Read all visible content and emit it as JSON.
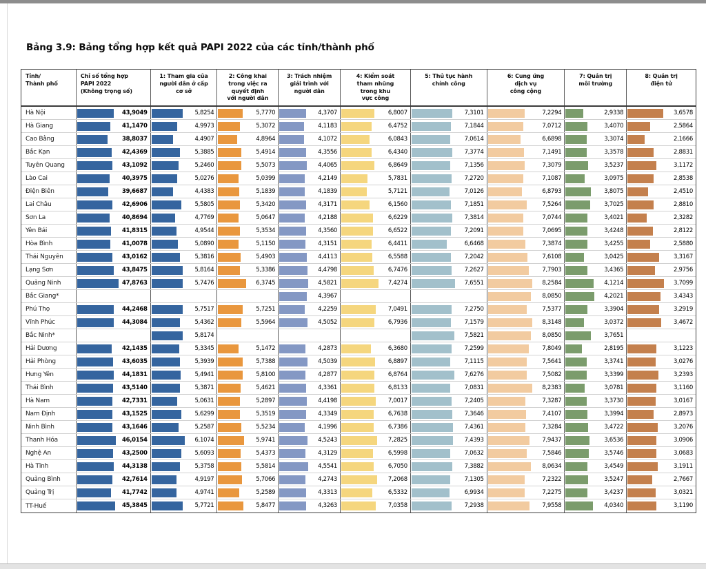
{
  "page": {
    "title": "Bảng 3.9: Bảng tổng hợp kết quả PAPI 2022 của các tỉnh/thành phố"
  },
  "table": {
    "columns": [
      {
        "key": "province",
        "label": "Tỉnh/\nThành phố",
        "width": 80,
        "align": "left"
      },
      {
        "key": "papi",
        "label": "Chỉ số tổng hợp\nPAPI 2022\n(Không trọng số)",
        "width": 108,
        "align": "left",
        "color": "#35659f",
        "bold": true
      },
      {
        "key": "c1",
        "label": "1: Tham gia của\nngười dân ở cấp\ncơ sở",
        "width": 97,
        "color": "#35659f"
      },
      {
        "key": "c2",
        "label": "2: Công khai\ntrong việc ra\nquyết định\nvới người dân",
        "width": 89,
        "color": "#e9973e"
      },
      {
        "key": "c3",
        "label": "3: Trách nhiệm\ngiải trình với\nngười dân",
        "width": 90,
        "color": "#8498c4"
      },
      {
        "key": "c4",
        "label": "4: Kiểm soát\ntham nhũng\ntrong khu\nvực công",
        "width": 102,
        "color": "#f5d67e"
      },
      {
        "key": "c5",
        "label": "5: Thủ tục hành\nchính công",
        "width": 111,
        "color": "#a2c0cb"
      },
      {
        "key": "c6",
        "label": "6: Cung ứng\ndịch vụ\ncông cộng",
        "width": 113,
        "color": "#f2cba0"
      },
      {
        "key": "c7",
        "label": "7: Quản trị\nmôi trường",
        "width": 90,
        "color": "#7b9c6c"
      },
      {
        "key": "c8",
        "label": "8: Quản trị\nđiện tử",
        "width": 100,
        "color": "#c4804d"
      }
    ],
    "rows": [
      {
        "province": "Hà Nội",
        "papi": "43,9049",
        "c1": "5,8254",
        "c2": "5,7770",
        "c3": "4,3707",
        "c4": "6,8007",
        "c5": "7,3101",
        "c6": "7,2294",
        "c7": "2,9338",
        "c8": "3,6578"
      },
      {
        "province": "Hà Giang",
        "papi": "41,1470",
        "c1": "4,9973",
        "c2": "5,3072",
        "c3": "4,1183",
        "c4": "6,4752",
        "c5": "7,1844",
        "c6": "7,0712",
        "c7": "3,4070",
        "c8": "2,5864"
      },
      {
        "province": "Cao Bằng",
        "papi": "38,8037",
        "c1": "4,4907",
        "c2": "4,8964",
        "c3": "4,1072",
        "c4": "6,0843",
        "c5": "7,0614",
        "c6": "6,6898",
        "c7": "3,3074",
        "c8": "2,1666"
      },
      {
        "province": "Bắc Kạn",
        "papi": "42,4369",
        "c1": "5,3885",
        "c2": "5,4914",
        "c3": "4,3556",
        "c4": "6,4340",
        "c5": "7,3774",
        "c6": "7,1491",
        "c7": "3,3578",
        "c8": "2,8831"
      },
      {
        "province": "Tuyên Quang",
        "papi": "43,1092",
        "c1": "5,2460",
        "c2": "5,5073",
        "c3": "4,4065",
        "c4": "6,8649",
        "c5": "7,1356",
        "c6": "7,3079",
        "c7": "3,5237",
        "c8": "3,1172"
      },
      {
        "province": "Lào Cai",
        "papi": "40,3975",
        "c1": "5,0276",
        "c2": "5,0399",
        "c3": "4,2149",
        "c4": "5,7831",
        "c5": "7,2720",
        "c6": "7,1087",
        "c7": "3,0975",
        "c8": "2,8538"
      },
      {
        "province": "Điện Biên",
        "papi": "39,6687",
        "c1": "4,4383",
        "c2": "5,1839",
        "c3": "4,1839",
        "c4": "5,7121",
        "c5": "7,0126",
        "c6": "6,8793",
        "c7": "3,8075",
        "c8": "2,4510"
      },
      {
        "province": "Lai Châu",
        "papi": "42,6906",
        "c1": "5,5805",
        "c2": "5,3420",
        "c3": "4,3171",
        "c4": "6,1560",
        "c5": "7,1851",
        "c6": "7,5264",
        "c7": "3,7025",
        "c8": "2,8810"
      },
      {
        "province": "Sơn La",
        "papi": "40,8694",
        "c1": "4,7769",
        "c2": "5,0647",
        "c3": "4,2188",
        "c4": "6,6229",
        "c5": "7,3814",
        "c6": "7,0744",
        "c7": "3,4021",
        "c8": "2,3282"
      },
      {
        "province": "Yên Bái",
        "papi": "41,8315",
        "c1": "4,9544",
        "c2": "5,3534",
        "c3": "4,3560",
        "c4": "6,6522",
        "c5": "7,2091",
        "c6": "7,0695",
        "c7": "3,4248",
        "c8": "2,8122"
      },
      {
        "province": "Hòa Bình",
        "papi": "41,0078",
        "c1": "5,0890",
        "c2": "5,1150",
        "c3": "4,3151",
        "c4": "6,4411",
        "c5": "6,6468",
        "c6": "7,3874",
        "c7": "3,4255",
        "c8": "2,5880"
      },
      {
        "province": "Thái Nguyên",
        "papi": "43,0162",
        "c1": "5,3816",
        "c2": "5,4903",
        "c3": "4,4113",
        "c4": "6,5588",
        "c5": "7,2042",
        "c6": "7,6108",
        "c7": "3,0425",
        "c8": "3,3167"
      },
      {
        "province": "Lạng Sơn",
        "papi": "43,8475",
        "c1": "5,8164",
        "c2": "5,3386",
        "c3": "4,4798",
        "c4": "6,7476",
        "c5": "7,2627",
        "c6": "7,7903",
        "c7": "3,4365",
        "c8": "2,9756"
      },
      {
        "province": "Quảng Ninh",
        "papi": "47,8763",
        "c1": "5,7476",
        "c2": "6,3745",
        "c3": "4,5821",
        "c4": "7,4274",
        "c5": "7,6551",
        "c6": "8,2584",
        "c7": "4,1214",
        "c8": "3,7099"
      },
      {
        "province": "Bắc Giang*",
        "papi": null,
        "c1": null,
        "c2": null,
        "c3": "4,3967",
        "c4": null,
        "c5": null,
        "c6": "8,0850",
        "c7": "4,2021",
        "c8": "3,4343"
      },
      {
        "province": "Phú Thọ",
        "papi": "44,2468",
        "c1": "5,7517",
        "c2": "5,7251",
        "c3": "4,2259",
        "c4": "7,0491",
        "c5": "7,2750",
        "c6": "7,5377",
        "c7": "3,3904",
        "c8": "3,2919"
      },
      {
        "province": "Vĩnh Phúc",
        "papi": "44,3084",
        "c1": "5,4362",
        "c2": "5,5964",
        "c3": "4,5052",
        "c4": "6,7936",
        "c5": "7,1579",
        "c6": "8,3148",
        "c7": "3,0372",
        "c8": "3,4672"
      },
      {
        "province": "Bắc Ninh*",
        "papi": null,
        "c1": "5,8174",
        "c2": null,
        "c3": null,
        "c4": null,
        "c5": "7,5821",
        "c6": "8,0850",
        "c7": "3,7651",
        "c8": null
      },
      {
        "province": "Hải Dương",
        "papi": "42,1435",
        "c1": "5,3345",
        "c2": "5,1472",
        "c3": "4,2873",
        "c4": "6,3680",
        "c5": "7,2599",
        "c6": "7,8049",
        "c7": "2,8195",
        "c8": "3,1223"
      },
      {
        "province": "Hải Phòng",
        "papi": "43,6035",
        "c1": "5,3939",
        "c2": "5,7388",
        "c3": "4,5039",
        "c4": "6,8897",
        "c5": "7,1115",
        "c6": "7,5641",
        "c7": "3,3741",
        "c8": "3,0276"
      },
      {
        "province": "Hưng Yên",
        "papi": "44,1831",
        "c1": "5,4941",
        "c2": "5,8100",
        "c3": "4,2877",
        "c4": "6,8764",
        "c5": "7,6276",
        "c6": "7,5082",
        "c7": "3,3399",
        "c8": "3,2393"
      },
      {
        "province": "Thái Bình",
        "papi": "43,5140",
        "c1": "5,3871",
        "c2": "5,4621",
        "c3": "4,3361",
        "c4": "6,8133",
        "c5": "7,0831",
        "c6": "8,2383",
        "c7": "3,0781",
        "c8": "3,1160"
      },
      {
        "province": "Hà Nam",
        "papi": "42,7331",
        "c1": "5,0631",
        "c2": "5,2897",
        "c3": "4,4198",
        "c4": "7,0017",
        "c5": "7,2405",
        "c6": "7,3287",
        "c7": "3,3730",
        "c8": "3,0167"
      },
      {
        "province": "Nam Định",
        "papi": "43,1525",
        "c1": "5,6299",
        "c2": "5,3519",
        "c3": "4,3349",
        "c4": "6,7638",
        "c5": "7,3646",
        "c6": "7,4107",
        "c7": "3,3994",
        "c8": "2,8973"
      },
      {
        "province": "Ninh Bình",
        "papi": "43,1646",
        "c1": "5,2587",
        "c2": "5,5234",
        "c3": "4,1996",
        "c4": "6,7386",
        "c5": "7,4361",
        "c6": "7,3284",
        "c7": "3,4722",
        "c8": "3,2076"
      },
      {
        "province": "Thanh Hóa",
        "papi": "46,0154",
        "c1": "6,1074",
        "c2": "5,9741",
        "c3": "4,5243",
        "c4": "7,2825",
        "c5": "7,4393",
        "c6": "7,9437",
        "c7": "3,6536",
        "c8": "3,0906"
      },
      {
        "province": "Nghệ An",
        "papi": "43,2500",
        "c1": "5,6093",
        "c2": "5,4373",
        "c3": "4,3129",
        "c4": "6,5998",
        "c5": "7,0632",
        "c6": "7,5846",
        "c7": "3,5746",
        "c8": "3,0683"
      },
      {
        "province": "Hà Tĩnh",
        "papi": "44,3138",
        "c1": "5,3758",
        "c2": "5,5814",
        "c3": "4,5541",
        "c4": "6,7050",
        "c5": "7,3882",
        "c6": "8,0634",
        "c7": "3,4549",
        "c8": "3,1911"
      },
      {
        "province": "Quảng Bình",
        "papi": "42,7614",
        "c1": "4,9197",
        "c2": "5,7066",
        "c3": "4,2743",
        "c4": "7,2068",
        "c5": "7,1305",
        "c6": "7,2322",
        "c7": "3,5247",
        "c8": "2,7667"
      },
      {
        "province": "Quảng Trị",
        "papi": "41,7742",
        "c1": "4,9741",
        "c2": "5,2589",
        "c3": "4,3313",
        "c4": "6,5332",
        "c5": "6,9934",
        "c6": "7,2275",
        "c7": "3,4237",
        "c8": "3,0321"
      },
      {
        "province": "TT-Huế",
        "papi": "45,3845",
        "c1": "5,7721",
        "c2": "5,8477",
        "c3": "4,3263",
        "c4": "7,0358",
        "c5": "7,2938",
        "c6": "7,9558",
        "c7": "4,0340",
        "c8": "3,1190"
      }
    ]
  }
}
